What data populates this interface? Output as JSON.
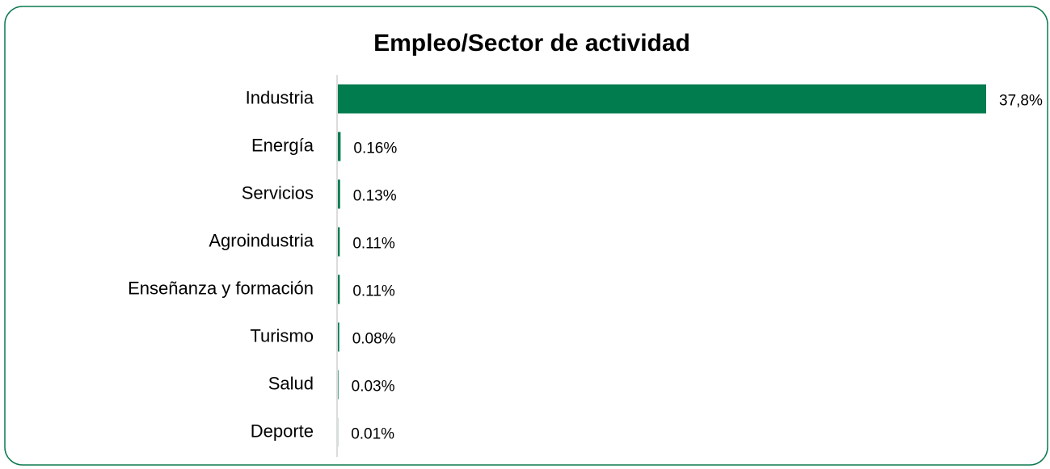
{
  "chart_data": {
    "type": "bar",
    "orientation": "horizontal",
    "title": "Empleo/Sector de actividad",
    "categories": [
      "Industria",
      "Energía",
      "Servicios",
      "Agroindustria",
      "Enseñanza y formación",
      "Turismo",
      "Salud",
      "Deporte"
    ],
    "values": [
      37.8,
      0.16,
      0.13,
      0.11,
      0.11,
      0.08,
      0.03,
      0.01
    ],
    "value_labels": [
      "37,8%",
      "0.16%",
      "0.13%",
      "0.11%",
      "0.11%",
      "0.08%",
      "0.03%",
      "0.01%"
    ],
    "color": "#017c4f"
  }
}
